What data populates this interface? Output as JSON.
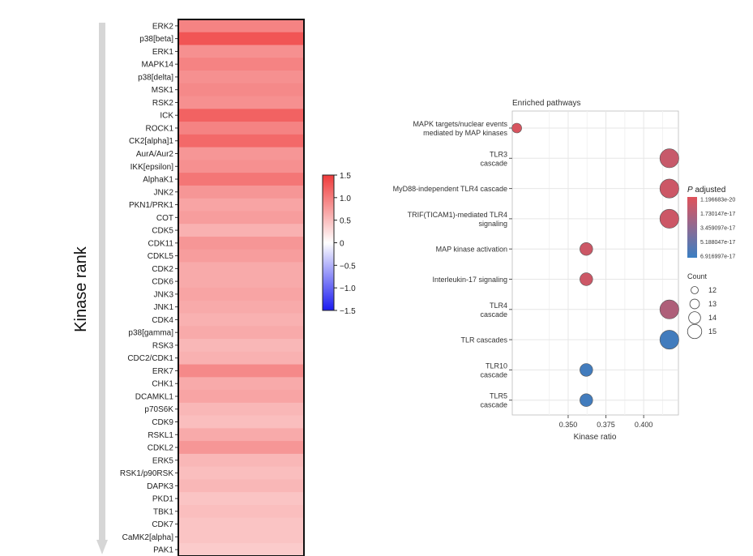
{
  "chart_data": [
    {
      "type": "heatmap",
      "ylabel": "Kinase rank",
      "kinases": [
        "ERK2",
        "p38[beta]",
        "ERK1",
        "MAPK14",
        "p38[delta]",
        "MSK1",
        "RSK2",
        "ICK",
        "ROCK1",
        "CK2[alpha]1",
        "AurA/Aur2",
        "IKK[epsilon]",
        "AlphaK1",
        "JNK2",
        "PKN1/PRK1",
        "COT",
        "CDK5",
        "CDK11",
        "CDKL5",
        "CDK2",
        "CDK6",
        "JNK3",
        "JNK1",
        "CDK4",
        "p38[gamma]",
        "RSK3",
        "CDC2/CDK1",
        "ERK7",
        "CHK1",
        "DCAMKL1",
        "p70S6K",
        "CDK9",
        "RSKL1",
        "CDKL2",
        "ERK5",
        "RSK1/p90RSK",
        "DAPK3",
        "PKD1",
        "TBK1",
        "CDK7",
        "CaMK2[alpha]",
        "PAK1"
      ],
      "values": [
        0.95,
        1.3,
        0.85,
        0.95,
        0.85,
        0.9,
        0.85,
        1.2,
        0.95,
        1.15,
        0.8,
        0.85,
        1.05,
        0.8,
        0.7,
        0.75,
        0.6,
        0.8,
        0.75,
        0.65,
        0.65,
        0.7,
        0.65,
        0.6,
        0.65,
        0.55,
        0.6,
        0.9,
        0.65,
        0.7,
        0.55,
        0.5,
        0.65,
        0.8,
        0.55,
        0.5,
        0.55,
        0.45,
        0.5,
        0.45,
        0.45,
        0.4
      ],
      "colorbar": {
        "ticks": [
          "1.5",
          "1.0",
          "0.5",
          "0",
          "−0.5",
          "−1.0",
          "−1.5"
        ],
        "range": [
          -1.5,
          1.5
        ],
        "colors": {
          "high": "#ef3b3b",
          "mid": "#ffffff",
          "low": "#1a1af0"
        }
      }
    },
    {
      "type": "scatter",
      "title": "Enriched pathways",
      "xlabel": "Kinase ratio",
      "x_ticks": [
        "0.350",
        "0.375",
        "0.400"
      ],
      "xlim": [
        0.313,
        0.423
      ],
      "categories": [
        [
          "MAPK targets/nuclear events",
          "mediated by MAP kinases"
        ],
        [
          "TLR3",
          "cascade"
        ],
        [
          "MyD88-independent TLR4 cascade"
        ],
        [
          "TRIF(TICAM1)-mediated TLR4",
          "signaling"
        ],
        [
          "MAP kinase activation"
        ],
        [
          "Interleukin-17 signaling"
        ],
        [
          "TLR4",
          "cascade"
        ],
        [
          "TLR cascades"
        ],
        [
          "TLR10",
          "cascade"
        ],
        [
          "TLR5",
          "cascade"
        ]
      ],
      "points": [
        {
          "x": 0.316,
          "count": 12,
          "p_frac": 0.05
        },
        {
          "x": 0.417,
          "count": 15,
          "p_frac": 0.15
        },
        {
          "x": 0.417,
          "count": 15,
          "p_frac": 0.12
        },
        {
          "x": 0.417,
          "count": 15,
          "p_frac": 0.12
        },
        {
          "x": 0.362,
          "count": 13,
          "p_frac": 0.12
        },
        {
          "x": 0.362,
          "count": 13,
          "p_frac": 0.12
        },
        {
          "x": 0.417,
          "count": 15,
          "p_frac": 0.3
        },
        {
          "x": 0.417,
          "count": 15,
          "p_frac": 0.95
        },
        {
          "x": 0.362,
          "count": 13,
          "p_frac": 0.95
        },
        {
          "x": 0.362,
          "count": 13,
          "p_frac": 0.95
        }
      ],
      "color_legend": {
        "title_italic": "P",
        "title_rest": " adjusted",
        "labels": [
          "1.196683e-20",
          "1.730147e-17",
          "3.459097e-17",
          "5.188047e-17",
          "6.916997e-17"
        ],
        "colors": {
          "low_p": "#e0525a",
          "high_p": "#3a7ec2"
        }
      },
      "size_legend": {
        "title": "Count",
        "labels": [
          "12",
          "13",
          "14",
          "15"
        ]
      }
    }
  ]
}
